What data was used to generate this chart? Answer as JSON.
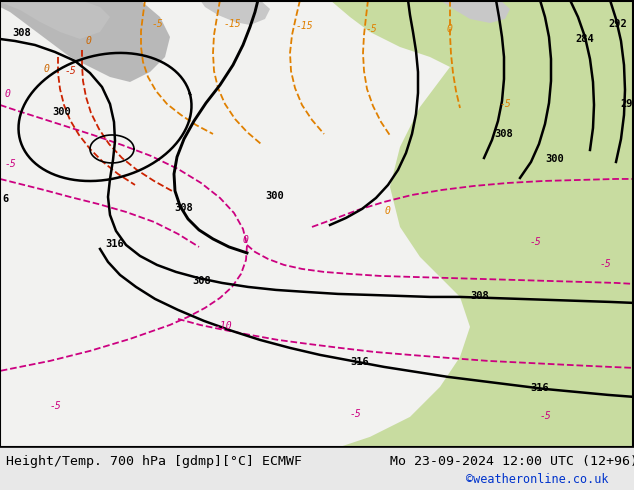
{
  "title_left": "Height/Temp. 700 hPa [gdmp][°C] ECMWF",
  "title_right": "Mo 23-09-2024 12:00 UTC (12+96)",
  "credit": "©weatheronline.co.uk",
  "bg_color": "#e8e8e8",
  "map_white": "#f0f0f0",
  "map_green": "#c8dca0",
  "map_gray": "#b8b8b8",
  "title_fontsize": 9.5,
  "credit_color": "#0033cc",
  "credit_fontsize": 8.5
}
